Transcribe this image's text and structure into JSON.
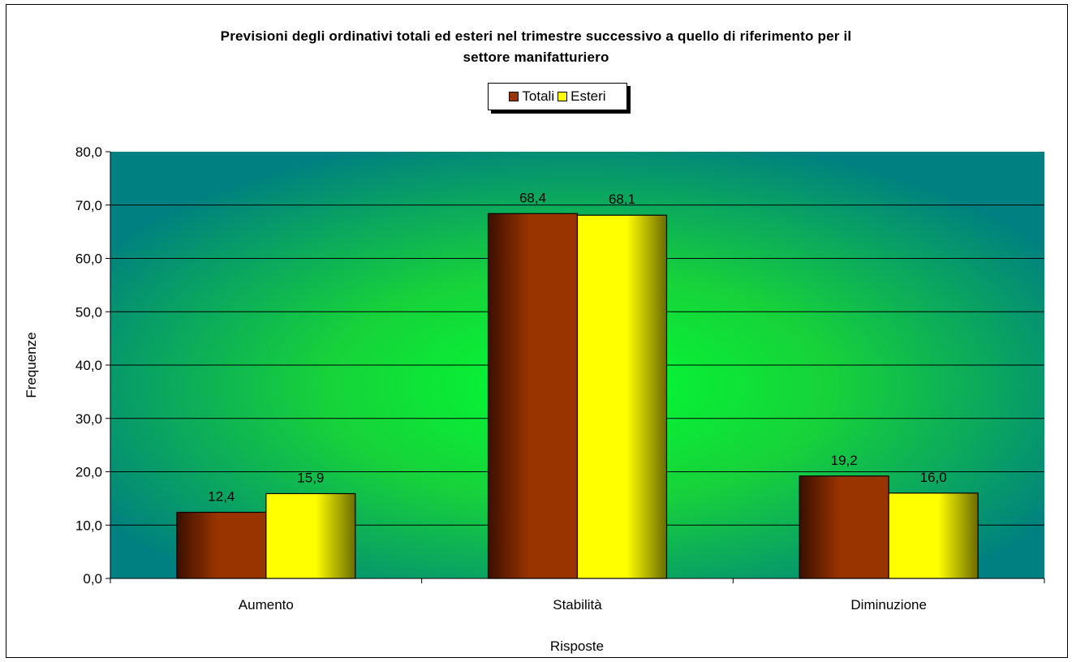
{
  "chart_data": {
    "type": "bar",
    "title_lines": [
      "Previsioni degli ordinativi totali ed esteri nel trimestre successivo a quello di riferimento per il",
      "settore manifatturiero"
    ],
    "xlabel": "Risposte",
    "ylabel": "Frequenze",
    "categories": [
      "Aumento",
      "Stabilità",
      "Diminuzione"
    ],
    "series": [
      {
        "name": "Totali",
        "values": [
          12.4,
          68.4,
          19.2
        ],
        "labels": [
          "12,4",
          "68,4",
          "19,2"
        ],
        "color": "#993300"
      },
      {
        "name": "Esteri",
        "values": [
          15.9,
          68.1,
          16.0
        ],
        "labels": [
          "15,9",
          "68,1",
          "16,0"
        ],
        "color": "#ffff00"
      }
    ],
    "ylim": [
      0,
      80
    ],
    "yticks": [
      0,
      10,
      20,
      30,
      40,
      50,
      60,
      70,
      80
    ],
    "ytick_labels": [
      "0,0",
      "10,0",
      "20,0",
      "30,0",
      "40,0",
      "50,0",
      "60,0",
      "70,0",
      "80,0"
    ],
    "grid": true,
    "legend_position": "top"
  }
}
